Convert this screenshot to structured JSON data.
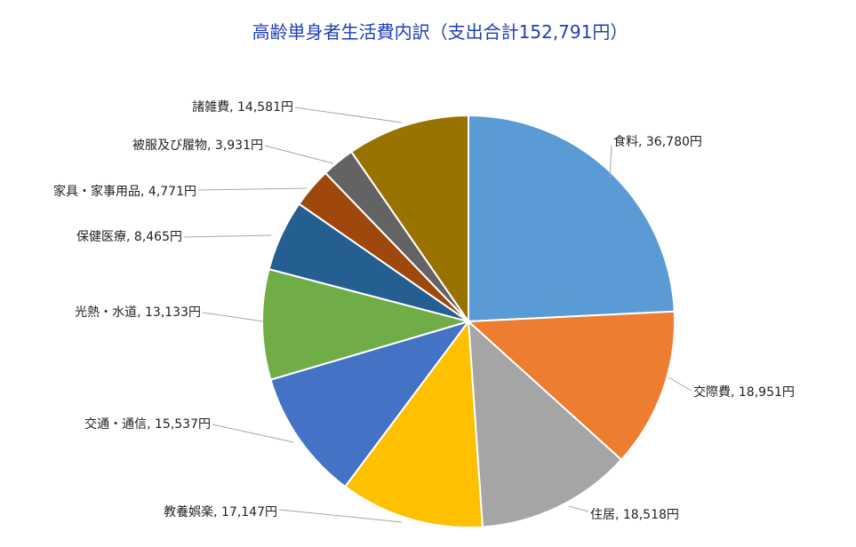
{
  "chart_data": {
    "type": "pie",
    "title": "高齢単身者生活費内訳（支出合計152,791円）",
    "slices": [
      {
        "label": "食料",
        "value": 36780,
        "value_text": "36,780円",
        "color": "#5b9bd5"
      },
      {
        "label": "交際費",
        "value": 18951,
        "value_text": "18,951円",
        "color": "#ed7d31"
      },
      {
        "label": "住居",
        "value": 18518,
        "value_text": "18,518円",
        "color": "#a5a5a5"
      },
      {
        "label": "教養娯楽",
        "value": 17147,
        "value_text": "17,147円",
        "color": "#ffc000"
      },
      {
        "label": "交通・通信",
        "value": 15537,
        "value_text": "15,537円",
        "color": "#4472c4"
      },
      {
        "label": "光熱・水道",
        "value": 13133,
        "value_text": "13,133円",
        "color": "#70ad47"
      },
      {
        "label": "保健医療",
        "value": 8465,
        "value_text": "8,465円",
        "color": "#255e91"
      },
      {
        "label": "家具・家事用品",
        "value": 4771,
        "value_text": "4,771円",
        "color": "#9e480e"
      },
      {
        "label": "被服及び履物",
        "value": 3931,
        "value_text": "3,931円",
        "color": "#636363"
      },
      {
        "label": "諸雑費",
        "value": 14581,
        "value_text": "14,581円",
        "color": "#997300"
      }
    ]
  }
}
